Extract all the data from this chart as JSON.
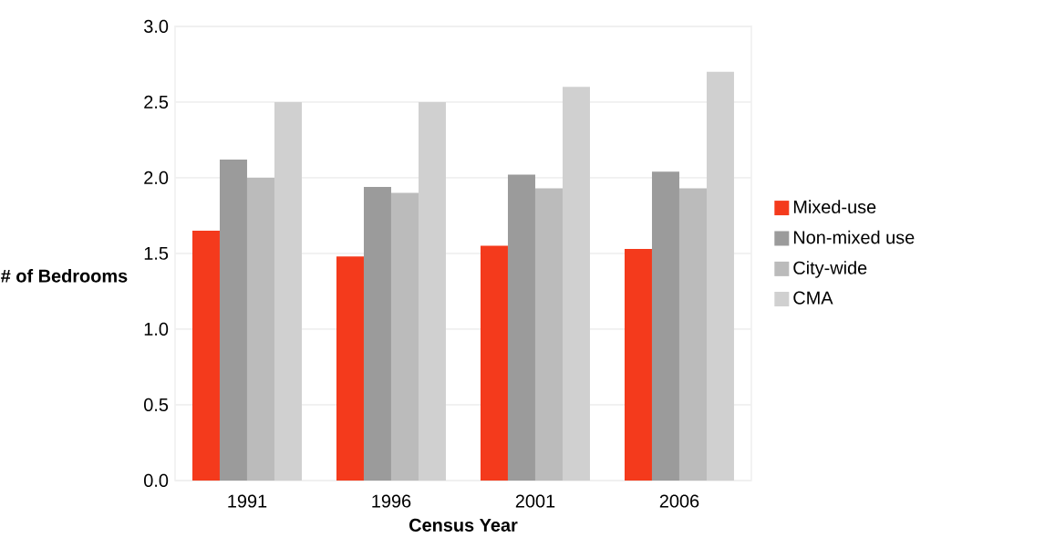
{
  "chart_data": {
    "type": "bar",
    "xlabel": "Census Year",
    "ylabel": "# of Bedrooms",
    "categories": [
      "1991",
      "1996",
      "2001",
      "2006"
    ],
    "series": [
      {
        "name": "Mixed-use",
        "color": "#f43a1c",
        "values": [
          1.65,
          1.48,
          1.55,
          1.53
        ]
      },
      {
        "name": "Non-mixed use",
        "color": "#9b9b9b",
        "values": [
          2.12,
          1.94,
          2.02,
          2.04
        ]
      },
      {
        "name": "City-wide",
        "color": "#bbbbbb",
        "values": [
          2.0,
          1.9,
          1.93,
          1.93
        ]
      },
      {
        "name": "CMA",
        "color": "#d0d0d0",
        "values": [
          2.5,
          2.5,
          2.6,
          2.7
        ]
      }
    ],
    "ylim": [
      0,
      3
    ],
    "yticks": [
      {
        "value": 0,
        "label": "0.0"
      },
      {
        "value": 0.5,
        "label": "0.5"
      },
      {
        "value": 1,
        "label": "1.0"
      },
      {
        "value": 1.5,
        "label": "1.5"
      },
      {
        "value": 2,
        "label": "2.0"
      },
      {
        "value": 2.5,
        "label": "2.5"
      },
      {
        "value": 3,
        "label": "3.0"
      }
    ],
    "grid": "y",
    "legend": "right"
  }
}
